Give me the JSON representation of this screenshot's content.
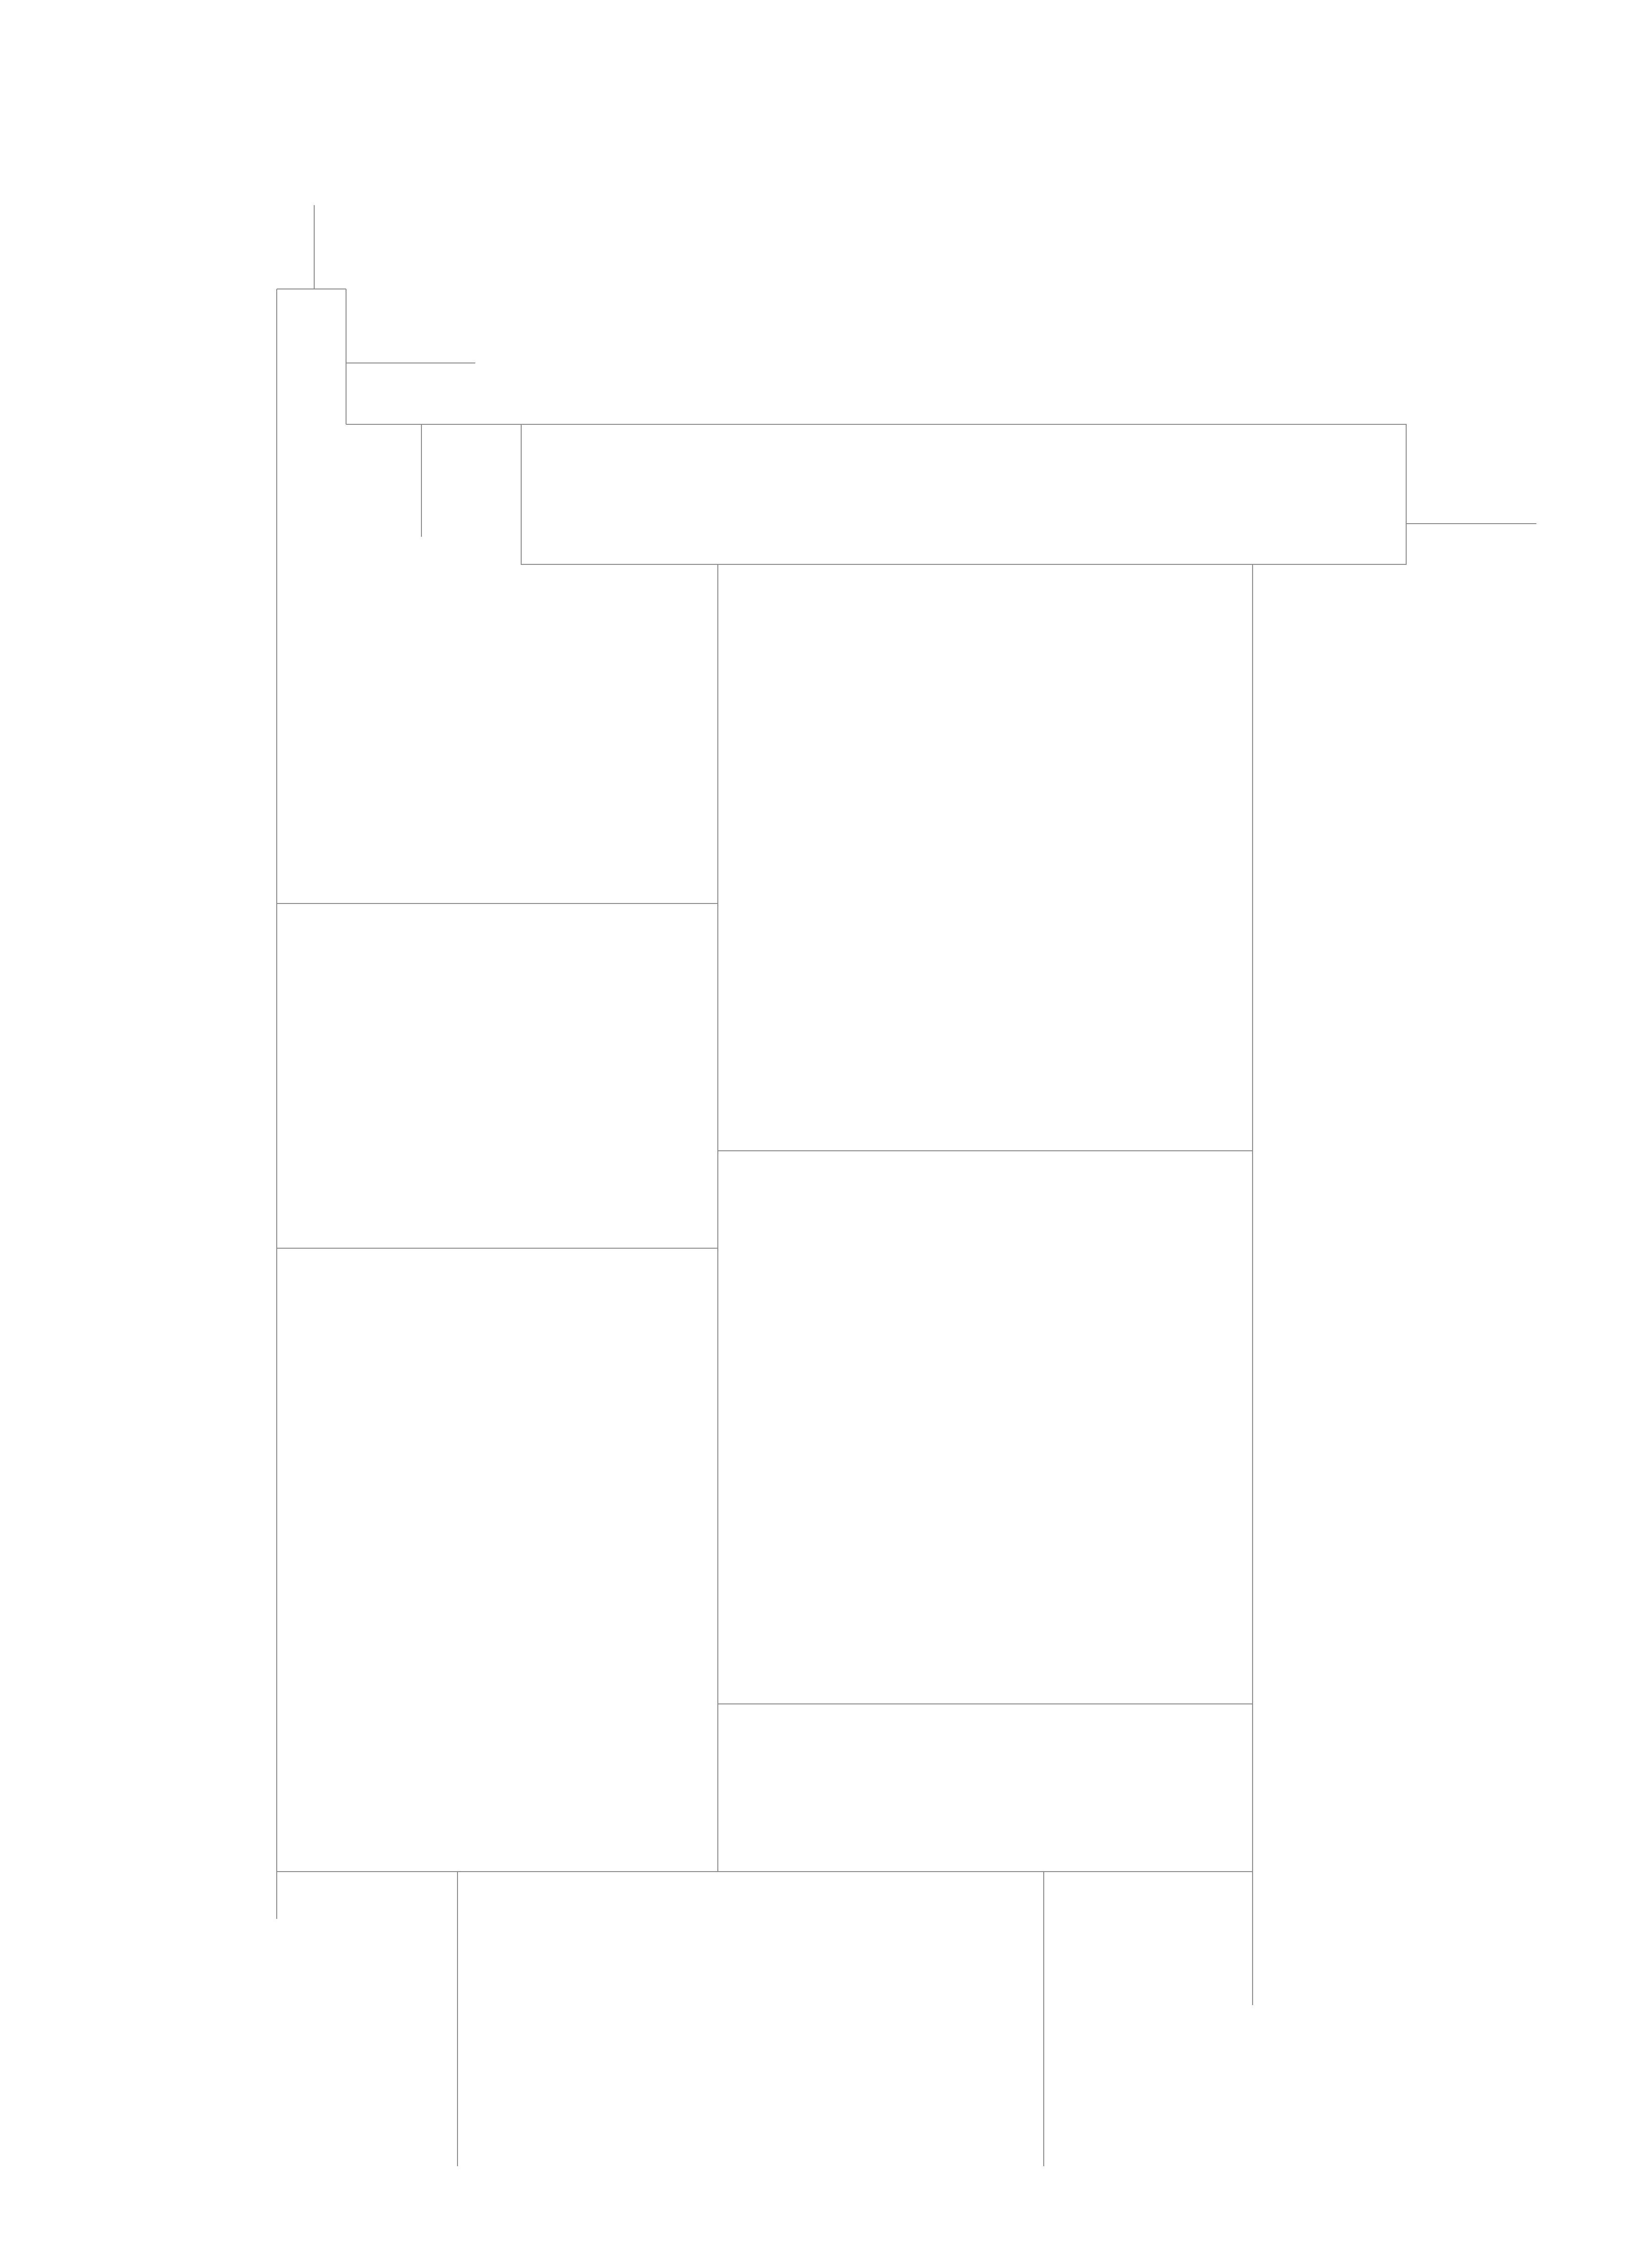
{
  "diagram": {
    "type": "line-drawing",
    "stroke_color": "#8a8a8a",
    "background_color": "#ffffff",
    "text_labels": []
  }
}
